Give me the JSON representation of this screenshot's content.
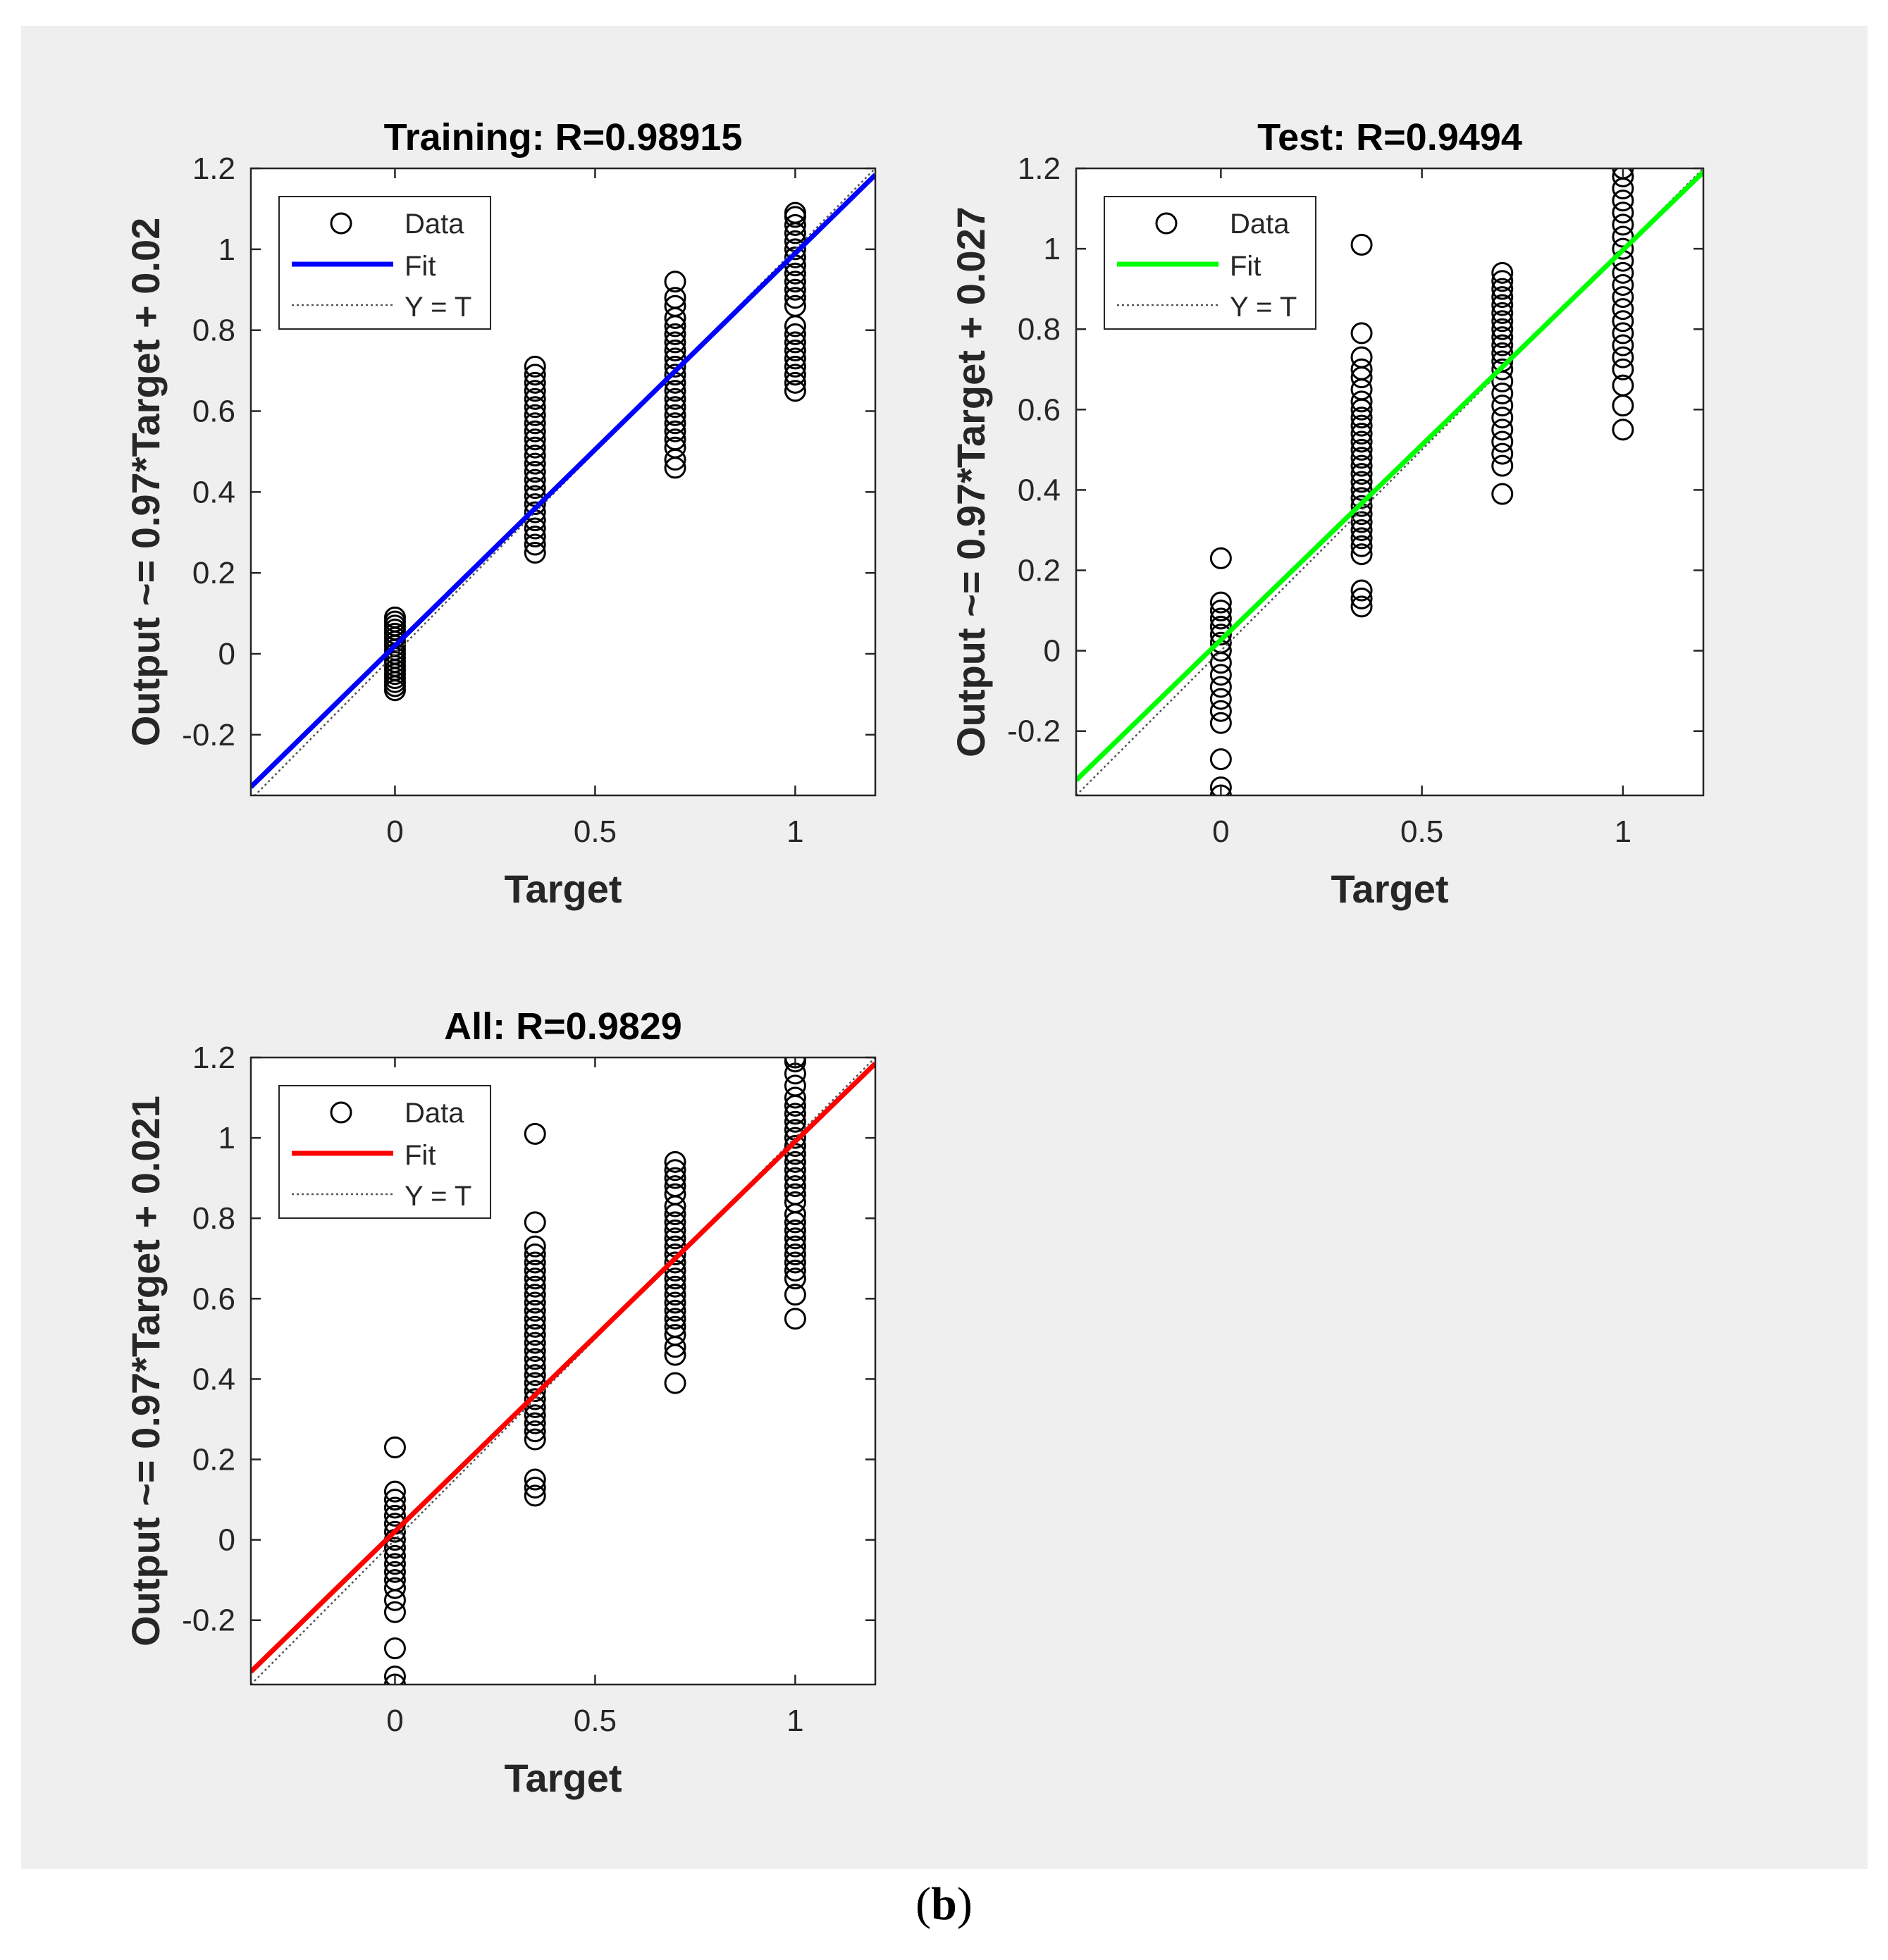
{
  "figure": {
    "label_open": "(",
    "label_letter": "b",
    "label_close": ")"
  },
  "chart_data": [
    {
      "type": "scatter",
      "title": "Training: R=0.98915",
      "xlabel": "Target",
      "ylabel": "Output ~= 0.97*Target + 0.02",
      "xlim": [
        -0.36,
        1.2
      ],
      "ylim": [
        -0.35,
        1.2
      ],
      "xticks": [
        0,
        0.5,
        1
      ],
      "xtick_labels": [
        "0",
        "0.5",
        "1"
      ],
      "yticks": [
        -0.2,
        0,
        0.2,
        0.4,
        0.6,
        0.8,
        1,
        1.2
      ],
      "ytick_labels": [
        "-0.2",
        "0",
        "0.2",
        "0.4",
        "0.6",
        "0.8",
        "1",
        "1.2"
      ],
      "fit": {
        "slope": 0.97,
        "intercept": 0.02,
        "color": "#0000ff"
      },
      "legend": {
        "position": "top-left",
        "data": "Data",
        "fit": "Fit",
        "ident": "Y = T"
      },
      "series": [
        {
          "x": 0,
          "y": [
            -0.09,
            -0.08,
            -0.07,
            -0.06,
            -0.05,
            -0.04,
            -0.03,
            -0.02,
            -0.01,
            0,
            0.01,
            0.02,
            0.03,
            0.04,
            0.05,
            0.06,
            0.07,
            0.08,
            0.09
          ]
        },
        {
          "x": 0.35,
          "y": [
            0.25,
            0.27,
            0.29,
            0.31,
            0.33,
            0.35,
            0.37,
            0.39,
            0.41,
            0.43,
            0.45,
            0.47,
            0.49,
            0.51,
            0.53,
            0.55,
            0.57,
            0.59,
            0.61,
            0.63,
            0.65,
            0.67,
            0.69,
            0.71
          ]
        },
        {
          "x": 0.7,
          "y": [
            0.46,
            0.48,
            0.51,
            0.53,
            0.55,
            0.57,
            0.59,
            0.61,
            0.63,
            0.65,
            0.67,
            0.69,
            0.71,
            0.73,
            0.75,
            0.77,
            0.79,
            0.81,
            0.83,
            0.86,
            0.88,
            0.92
          ]
        },
        {
          "x": 1,
          "y": [
            0.65,
            0.67,
            0.69,
            0.71,
            0.73,
            0.75,
            0.77,
            0.79,
            0.81,
            0.86,
            0.88,
            0.9,
            0.92,
            0.94,
            0.96,
            0.98,
            1.0,
            1.02,
            1.04,
            1.06,
            1.08,
            1.09
          ]
        }
      ]
    },
    {
      "type": "scatter",
      "title": "Test: R=0.9494",
      "xlabel": "Target",
      "ylabel": "Output ~= 0.97*Target + 0.027",
      "xlim": [
        -0.36,
        1.2
      ],
      "ylim": [
        -0.36,
        1.2
      ],
      "xticks": [
        0,
        0.5,
        1
      ],
      "xtick_labels": [
        "0",
        "0.5",
        "1"
      ],
      "yticks": [
        -0.2,
        0,
        0.2,
        0.4,
        0.6,
        0.8,
        1,
        1.2
      ],
      "ytick_labels": [
        "-0.2",
        "0",
        "0.2",
        "0.4",
        "0.6",
        "0.8",
        "1",
        "1.2"
      ],
      "fit": {
        "slope": 0.97,
        "intercept": 0.027,
        "color": "#00ff00"
      },
      "legend": {
        "position": "top-left",
        "data": "Data",
        "fit": "Fit",
        "ident": "Y = T"
      },
      "series": [
        {
          "x": 0,
          "y": [
            -0.36,
            -0.34,
            -0.27,
            -0.18,
            -0.15,
            -0.12,
            -0.09,
            -0.06,
            -0.03,
            0,
            0.02,
            0.04,
            0.06,
            0.08,
            0.1,
            0.12,
            0.23
          ]
        },
        {
          "x": 0.35,
          "y": [
            0.11,
            0.13,
            0.15,
            0.24,
            0.26,
            0.28,
            0.3,
            0.32,
            0.34,
            0.36,
            0.38,
            0.4,
            0.42,
            0.44,
            0.46,
            0.48,
            0.5,
            0.52,
            0.54,
            0.56,
            0.58,
            0.6,
            0.62,
            0.65,
            0.68,
            0.7,
            0.73,
            0.79,
            1.01
          ]
        },
        {
          "x": 0.7,
          "y": [
            0.39,
            0.46,
            0.49,
            0.52,
            0.55,
            0.58,
            0.61,
            0.64,
            0.67,
            0.7,
            0.72,
            0.74,
            0.76,
            0.78,
            0.8,
            0.82,
            0.84,
            0.86,
            0.88,
            0.9,
            0.92,
            0.94
          ]
        },
        {
          "x": 1,
          "y": [
            0.55,
            0.61,
            0.66,
            0.7,
            0.73,
            0.76,
            0.79,
            0.82,
            0.85,
            0.88,
            0.91,
            0.94,
            0.97,
            1.0,
            1.03,
            1.06,
            1.09,
            1.12,
            1.15,
            1.18,
            1.2
          ]
        }
      ]
    },
    {
      "type": "scatter",
      "title": "All: R=0.9829",
      "xlabel": "Target",
      "ylabel": "Output ~= 0.97*Target + 0.021",
      "xlim": [
        -0.36,
        1.2
      ],
      "ylim": [
        -0.36,
        1.2
      ],
      "xticks": [
        0,
        0.5,
        1
      ],
      "xtick_labels": [
        "0",
        "0.5",
        "1"
      ],
      "yticks": [
        -0.2,
        0,
        0.2,
        0.4,
        0.6,
        0.8,
        1,
        1.2
      ],
      "ytick_labels": [
        "-0.2",
        "0",
        "0.2",
        "0.4",
        "0.6",
        "0.8",
        "1",
        "1.2"
      ],
      "fit": {
        "slope": 0.97,
        "intercept": 0.021,
        "color": "#ff0000"
      },
      "legend": {
        "position": "top-left",
        "data": "Data",
        "fit": "Fit",
        "ident": "Y = T"
      },
      "series": [
        {
          "x": 0,
          "y": [
            -0.36,
            -0.34,
            -0.27,
            -0.18,
            -0.15,
            -0.12,
            -0.1,
            -0.08,
            -0.06,
            -0.04,
            -0.02,
            0,
            0.02,
            0.04,
            0.06,
            0.08,
            0.1,
            0.12,
            0.23
          ]
        },
        {
          "x": 0.35,
          "y": [
            0.11,
            0.13,
            0.15,
            0.25,
            0.27,
            0.29,
            0.31,
            0.33,
            0.35,
            0.37,
            0.39,
            0.41,
            0.43,
            0.45,
            0.47,
            0.49,
            0.51,
            0.53,
            0.55,
            0.57,
            0.59,
            0.61,
            0.63,
            0.65,
            0.67,
            0.69,
            0.71,
            0.73,
            0.79,
            1.01
          ]
        },
        {
          "x": 0.7,
          "y": [
            0.39,
            0.46,
            0.48,
            0.51,
            0.53,
            0.55,
            0.57,
            0.59,
            0.61,
            0.63,
            0.65,
            0.67,
            0.69,
            0.71,
            0.73,
            0.75,
            0.77,
            0.79,
            0.81,
            0.83,
            0.86,
            0.88,
            0.9,
            0.92,
            0.94
          ]
        },
        {
          "x": 1,
          "y": [
            0.55,
            0.61,
            0.65,
            0.67,
            0.69,
            0.71,
            0.73,
            0.75,
            0.77,
            0.79,
            0.81,
            0.84,
            0.86,
            0.88,
            0.9,
            0.92,
            0.94,
            0.96,
            0.98,
            1.0,
            1.02,
            1.04,
            1.06,
            1.08,
            1.1,
            1.13,
            1.16,
            1.19,
            1.2
          ]
        }
      ]
    }
  ]
}
